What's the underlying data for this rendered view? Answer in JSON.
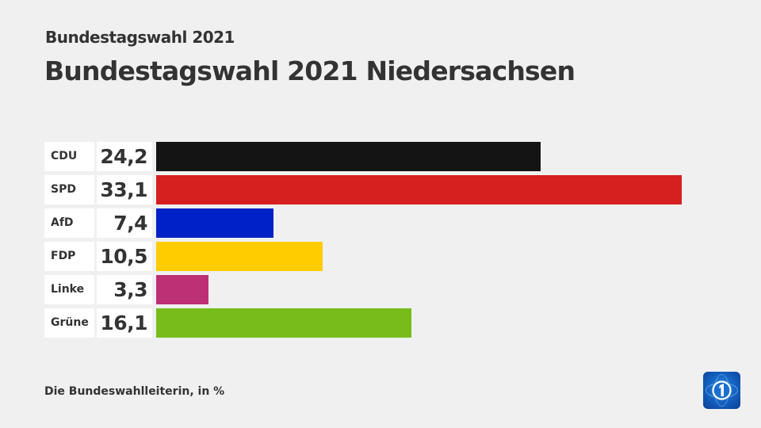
{
  "header": {
    "subtitle": "Bundestagswahl 2021",
    "title": "Bundestagswahl 2021 Niedersachsen"
  },
  "footer": {
    "source": "Die Bundeswahlleiterin, in %"
  },
  "logo": {
    "icon": "tagesschau-globe-1-icon"
  },
  "chart_data": {
    "type": "bar",
    "orientation": "horizontal",
    "title": "Bundestagswahl 2021 Niedersachsen",
    "subtitle": "Bundestagswahl 2021",
    "xlabel": "",
    "ylabel": "",
    "unit": "%",
    "grid": false,
    "legend": "none",
    "categories": [
      "CDU",
      "SPD",
      "AfD",
      "FDP",
      "Linke",
      "Grüne"
    ],
    "values": [
      24.2,
      33.1,
      7.4,
      10.5,
      3.3,
      16.1
    ],
    "value_labels": [
      "24,2",
      "33,1",
      "7,4",
      "10,5",
      "3,3",
      "16,1"
    ],
    "colors": [
      "#141414",
      "#d62020",
      "#0021c8",
      "#ffcc00",
      "#bd3075",
      "#78bc1b"
    ],
    "note": "Die Bundeswahlleiterin, in %"
  }
}
